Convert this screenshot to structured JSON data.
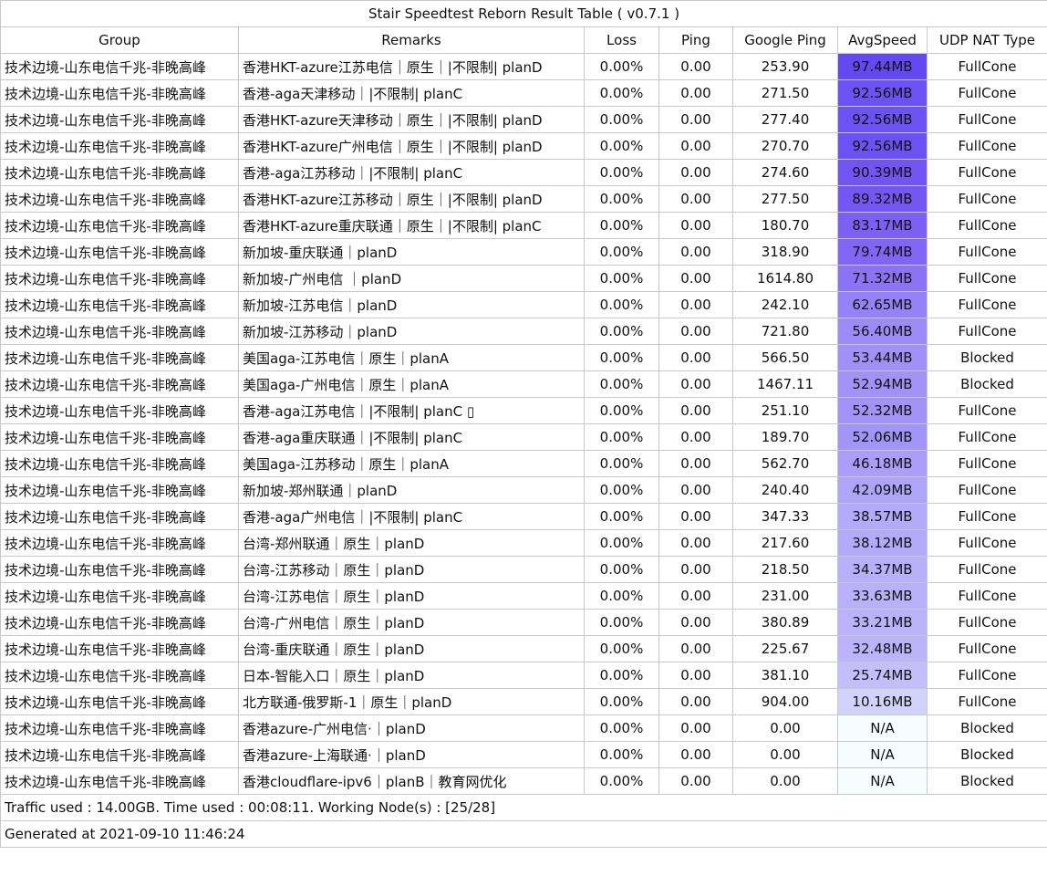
{
  "title": "Stair Speedtest Reborn Result Table ( v0.7.1 )",
  "headers": [
    "Group",
    "Remarks",
    "Loss",
    "Ping",
    "Google Ping",
    "AvgSpeed",
    "UDP NAT Type"
  ],
  "rows": [
    {
      "group": "技术边境-山东电信千兆-非晚高峰",
      "remarks": "香港HKT-azure江苏电信｜原生｜|不限制| planD",
      "loss": "0.00%",
      "ping": "0.00",
      "gping": "253.90",
      "speed": "97.44MB",
      "speed_color": "#6448f1",
      "nat": "FullCone"
    },
    {
      "group": "技术边境-山东电信千兆-非晚高峰",
      "remarks": "香港-aga天津移动｜|不限制| planC",
      "loss": "0.00%",
      "ping": "0.00",
      "gping": "271.50",
      "speed": "92.56MB",
      "speed_color": "#6d52f3",
      "nat": "FullCone"
    },
    {
      "group": "技术边境-山东电信千兆-非晚高峰",
      "remarks": "香港HKT-azure天津移动｜原生｜|不限制| planD",
      "loss": "0.00%",
      "ping": "0.00",
      "gping": "277.40",
      "speed": "92.56MB",
      "speed_color": "#6d52f3",
      "nat": "FullCone"
    },
    {
      "group": "技术边境-山东电信千兆-非晚高峰",
      "remarks": "香港HKT-azure广州电信｜原生｜|不限制| planD",
      "loss": "0.00%",
      "ping": "0.00",
      "gping": "270.70",
      "speed": "92.56MB",
      "speed_color": "#6d52f3",
      "nat": "FullCone"
    },
    {
      "group": "技术边境-山东电信千兆-非晚高峰",
      "remarks": "香港-aga江苏移动｜|不限制| planC",
      "loss": "0.00%",
      "ping": "0.00",
      "gping": "274.60",
      "speed": "90.39MB",
      "speed_color": "#7055f3",
      "nat": "FullCone"
    },
    {
      "group": "技术边境-山东电信千兆-非晚高峰",
      "remarks": "香港HKT-azure江苏移动｜原生｜|不限制| planD",
      "loss": "0.00%",
      "ping": "0.00",
      "gping": "277.50",
      "speed": "89.32MB",
      "speed_color": "#7257f3",
      "nat": "FullCone"
    },
    {
      "group": "技术边境-山东电信千兆-非晚高峰",
      "remarks": "香港HKT-azure重庆联通｜原生｜|不限制| planC",
      "loss": "0.00%",
      "ping": "0.00",
      "gping": "180.70",
      "speed": "83.17MB",
      "speed_color": "#7a61f4",
      "nat": "FullCone"
    },
    {
      "group": "技术边境-山东电信千兆-非晚高峰",
      "remarks": "新加坡-重庆联通｜planD",
      "loss": "0.00%",
      "ping": "0.00",
      "gping": "318.90",
      "speed": "79.74MB",
      "speed_color": "#7f66f4",
      "nat": "FullCone"
    },
    {
      "group": "技术边境-山东电信千兆-非晚高峰",
      "remarks": "新加坡-广州电信 ｜planD",
      "loss": "0.00%",
      "ping": "0.00",
      "gping": "1614.80",
      "speed": "71.32MB",
      "speed_color": "#8a74f5",
      "nat": "FullCone"
    },
    {
      "group": "技术边境-山东电信千兆-非晚高峰",
      "remarks": "新加坡-江苏电信｜planD",
      "loss": "0.00%",
      "ping": "0.00",
      "gping": "242.10",
      "speed": "62.65MB",
      "speed_color": "#9582f6",
      "nat": "FullCone"
    },
    {
      "group": "技术边境-山东电信千兆-非晚高峰",
      "remarks": "新加坡-江苏移动｜planD",
      "loss": "0.00%",
      "ping": "0.00",
      "gping": "721.80",
      "speed": "56.40MB",
      "speed_color": "#9d8cf7",
      "nat": "FullCone"
    },
    {
      "group": "技术边境-山东电信千兆-非晚高峰",
      "remarks": "美国aga-江苏电信｜原生｜planA",
      "loss": "0.00%",
      "ping": "0.00",
      "gping": "566.50",
      "speed": "53.44MB",
      "speed_color": "#a191f7",
      "nat": "Blocked"
    },
    {
      "group": "技术边境-山东电信千兆-非晚高峰",
      "remarks": "美国aga-广州电信｜原生｜planA",
      "loss": "0.00%",
      "ping": "0.00",
      "gping": "1467.11",
      "speed": "52.94MB",
      "speed_color": "#a292f7",
      "nat": "Blocked"
    },
    {
      "group": "技术边境-山东电信千兆-非晚高峰",
      "remarks": "香港-aga江苏电信｜|不限制| planC ▯",
      "loss": "0.00%",
      "ping": "0.00",
      "gping": "251.10",
      "speed": "52.32MB",
      "speed_color": "#a393f7",
      "nat": "FullCone"
    },
    {
      "group": "技术边境-山东电信千兆-非晚高峰",
      "remarks": "香港-aga重庆联通｜|不限制| planC",
      "loss": "0.00%",
      "ping": "0.00",
      "gping": "189.70",
      "speed": "52.06MB",
      "speed_color": "#a394f7",
      "nat": "FullCone"
    },
    {
      "group": "技术边境-山东电信千兆-非晚高峰",
      "remarks": "美国aga-江苏移动｜原生｜planA",
      "loss": "0.00%",
      "ping": "0.00",
      "gping": "562.70",
      "speed": "46.18MB",
      "speed_color": "#ab9df8",
      "nat": "FullCone"
    },
    {
      "group": "技术边境-山东电信千兆-非晚高峰",
      "remarks": "新加坡-郑州联通｜planD",
      "loss": "0.00%",
      "ping": "0.00",
      "gping": "240.40",
      "speed": "42.09MB",
      "speed_color": "#b0a4f9",
      "nat": "FullCone"
    },
    {
      "group": "技术边境-山东电信千兆-非晚高峰",
      "remarks": "香港-aga广州电信｜|不限制| planC",
      "loss": "0.00%",
      "ping": "0.00",
      "gping": "347.33",
      "speed": "38.57MB",
      "speed_color": "#b5a9f9",
      "nat": "FullCone"
    },
    {
      "group": "技术边境-山东电信千兆-非晚高峰",
      "remarks": "台湾-郑州联通｜原生｜planD",
      "loss": "0.00%",
      "ping": "0.00",
      "gping": "217.60",
      "speed": "38.12MB",
      "speed_color": "#b5aaf9",
      "nat": "FullCone"
    },
    {
      "group": "技术边境-山东电信千兆-非晚高峰",
      "remarks": "台湾-江苏移动｜原生｜planD",
      "loss": "0.00%",
      "ping": "0.00",
      "gping": "218.50",
      "speed": "34.37MB",
      "speed_color": "#bab0fa",
      "nat": "FullCone"
    },
    {
      "group": "技术边境-山东电信千兆-非晚高峰",
      "remarks": "台湾-江苏电信｜原生｜planD",
      "loss": "0.00%",
      "ping": "0.00",
      "gping": "231.00",
      "speed": "33.63MB",
      "speed_color": "#bbb1fa",
      "nat": "FullCone"
    },
    {
      "group": "技术边境-山东电信千兆-非晚高峰",
      "remarks": "台湾-广州电信｜原生｜planD",
      "loss": "0.00%",
      "ping": "0.00",
      "gping": "380.89",
      "speed": "33.21MB",
      "speed_color": "#bcb2fa",
      "nat": "FullCone"
    },
    {
      "group": "技术边境-山东电信千兆-非晚高峰",
      "remarks": "台湾-重庆联通｜原生｜planD",
      "loss": "0.00%",
      "ping": "0.00",
      "gping": "225.67",
      "speed": "32.48MB",
      "speed_color": "#bdb3fa",
      "nat": "FullCone"
    },
    {
      "group": "技术边境-山东电信千兆-非晚高峰",
      "remarks": "日本-智能入口｜原生｜planD",
      "loss": "0.00%",
      "ping": "0.00",
      "gping": "381.10",
      "speed": "25.74MB",
      "speed_color": "#c6bdfb",
      "nat": "FullCone"
    },
    {
      "group": "技术边境-山东电信千兆-非晚高峰",
      "remarks": "北方联通-俄罗斯-1｜原生｜planD",
      "loss": "0.00%",
      "ping": "0.00",
      "gping": "904.00",
      "speed": "10.16MB",
      "speed_color": "#d2d2fb",
      "nat": "FullCone"
    },
    {
      "group": "技术边境-山东电信千兆-非晚高峰",
      "remarks": "香港azure-广州电信·｜planD",
      "loss": "0.00%",
      "ping": "0.00",
      "gping": "0.00",
      "speed": "N/A",
      "speed_color": "#f5fdfd",
      "nat": "Blocked"
    },
    {
      "group": "技术边境-山东电信千兆-非晚高峰",
      "remarks": "香港azure-上海联通·｜planD",
      "loss": "0.00%",
      "ping": "0.00",
      "gping": "0.00",
      "speed": "N/A",
      "speed_color": "#f5fdfd",
      "nat": "Blocked"
    },
    {
      "group": "技术边境-山东电信千兆-非晚高峰",
      "remarks": "香港cloudflare-ipv6｜planB｜教育网优化",
      "loss": "0.00%",
      "ping": "0.00",
      "gping": "0.00",
      "speed": "N/A",
      "speed_color": "#f5fdfd",
      "nat": "Blocked"
    }
  ],
  "footer": {
    "traffic": "Traffic used : 14.00GB. Time used : 00:08:11. Working Node(s) : [25/28]",
    "generated": "Generated at 2021-09-10 11:46:24"
  }
}
